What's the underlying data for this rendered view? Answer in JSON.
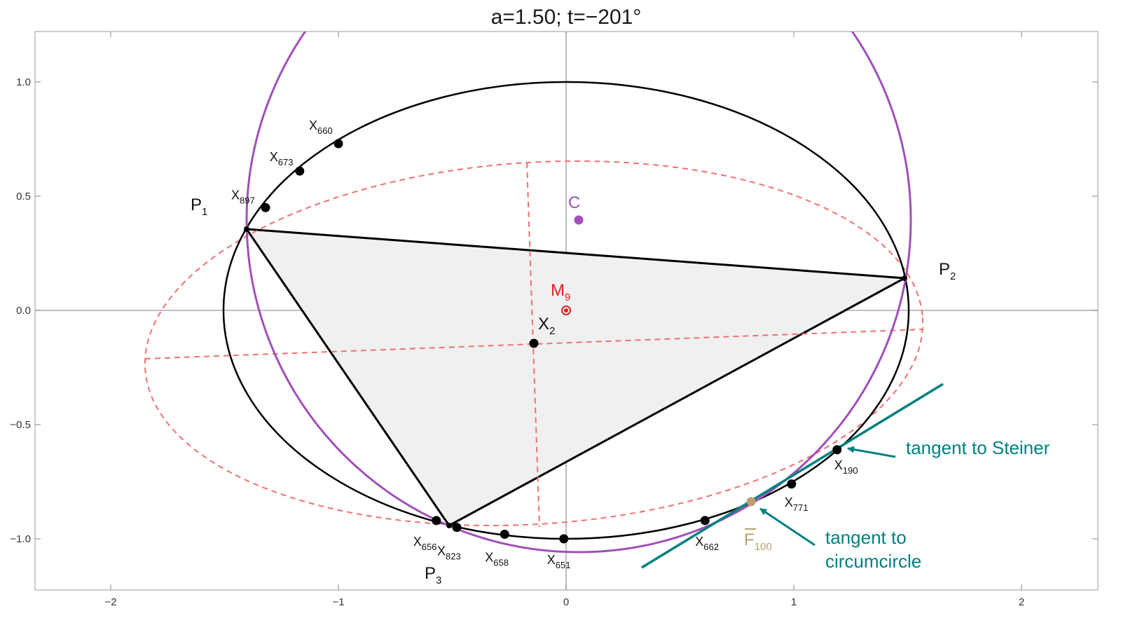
{
  "title": "a=1.50; t=−201°",
  "axes": {
    "x_ticks": [
      "−2",
      "−1",
      "0",
      "1",
      "2"
    ],
    "y_ticks": [
      "1.0",
      "0.5",
      "0.0",
      "−0.5",
      "−1.0"
    ],
    "xlim": [
      -2.33,
      2.33
    ],
    "ylim": [
      -1.22,
      1.22
    ]
  },
  "labels": {
    "p1": {
      "main": "P",
      "sub": "1"
    },
    "p2": {
      "main": "P",
      "sub": "2"
    },
    "p3": {
      "main": "P",
      "sub": "3"
    },
    "c": "C",
    "m9": {
      "main": "M",
      "sub": "9"
    },
    "x2": {
      "main": "X",
      "sub": "2"
    },
    "f100": {
      "main": "F",
      "sub": "100"
    }
  },
  "points": [
    {
      "id": "x660",
      "main": "X",
      "sub": "660",
      "x": -1.0,
      "y": 0.73
    },
    {
      "id": "x673",
      "main": "X",
      "sub": "673",
      "x": -1.17,
      "y": 0.61
    },
    {
      "id": "x897",
      "main": "X",
      "sub": "897",
      "x": -1.32,
      "y": 0.45
    },
    {
      "id": "x190",
      "main": "X",
      "sub": "190",
      "x": 1.19,
      "y": -0.61
    },
    {
      "id": "x771",
      "main": "X",
      "sub": "771",
      "x": 0.99,
      "y": -0.76
    },
    {
      "id": "x662",
      "main": "X",
      "sub": "662",
      "x": 0.61,
      "y": -0.92
    },
    {
      "id": "x651",
      "main": "X",
      "sub": "651",
      "x": -0.01,
      "y": -1.0
    },
    {
      "id": "x658",
      "main": "X",
      "sub": "658",
      "x": -0.27,
      "y": -0.98
    },
    {
      "id": "x823",
      "main": "X",
      "sub": "823",
      "x": -0.48,
      "y": -0.95
    },
    {
      "id": "x656",
      "main": "X",
      "sub": "656",
      "x": -0.57,
      "y": -0.92
    }
  ],
  "annotations": {
    "steiner": "tangent to Steiner",
    "circ_line1": "tangent to",
    "circ_line2": "circumcircle"
  },
  "colors": {
    "ellipse": "#000000",
    "circumcircle": "#a050b8",
    "dashed": "#f07070",
    "triangle_fill": "#f0f0f0",
    "annotation": "#008080",
    "m9": "#e02020",
    "f100": "#b8a070"
  }
}
